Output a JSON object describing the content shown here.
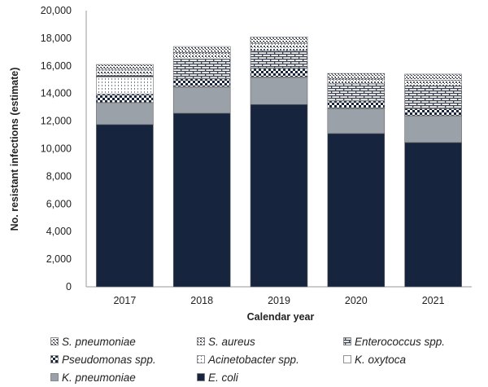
{
  "chart_data": {
    "type": "bar",
    "stacked": true,
    "title": "",
    "xlabel": "Calendar year",
    "ylabel": "No. resistant infections (estimate)",
    "ylim": [
      0,
      20000
    ],
    "yticks": [
      "0",
      "2,000",
      "4,000",
      "6,000",
      "8,000",
      "10,000",
      "12,000",
      "14,000",
      "16,000",
      "18,000",
      "20,000"
    ],
    "ytick_values": [
      0,
      2000,
      4000,
      6000,
      8000,
      10000,
      12000,
      14000,
      16000,
      18000,
      20000
    ],
    "categories": [
      "2017",
      "2018",
      "2019",
      "2020",
      "2021"
    ],
    "legend_position": "bottom",
    "legend_order": [
      "S. pneumoniae",
      "S. aureus",
      "Enterococcus spp.",
      "Pseudomonas spp.",
      "Acinetobacter spp.",
      "K. oxytoca",
      "K. pneumoniae",
      "E. coli"
    ],
    "series": [
      {
        "name": "E. coli",
        "pattern": "solid-dark",
        "color": "#16243e",
        "values": [
          11750,
          12570,
          13200,
          11100,
          10450
        ]
      },
      {
        "name": "K. pneumoniae",
        "pattern": "solid-gray",
        "color": "#9ba1a9",
        "values": [
          1550,
          1880,
          1950,
          1800,
          1900
        ]
      },
      {
        "name": "K. oxytoca",
        "pattern": "white",
        "color": "#ffffff",
        "values": [
          50,
          50,
          50,
          50,
          50
        ]
      },
      {
        "name": "Pseudomonas spp.",
        "pattern": "checker",
        "color": "#16243e",
        "values": [
          600,
          550,
          600,
          500,
          500
        ]
      },
      {
        "name": "Acinetobacter spp.",
        "pattern": "vlines",
        "color": "#6a7080",
        "values": [
          1250,
          50,
          50,
          50,
          50
        ]
      },
      {
        "name": "Enterococcus spp.",
        "pattern": "brick",
        "color": "#4a5262",
        "values": [
          100,
          1400,
          1250,
          1200,
          1600
        ]
      },
      {
        "name": "S. aureus",
        "pattern": "dots",
        "color": "#4a5262",
        "values": [
          400,
          450,
          500,
          350,
          400
        ]
      },
      {
        "name": "S. pneumoniae",
        "pattern": "dots2",
        "color": "#4a5262",
        "values": [
          400,
          450,
          500,
          400,
          450
        ]
      }
    ]
  }
}
